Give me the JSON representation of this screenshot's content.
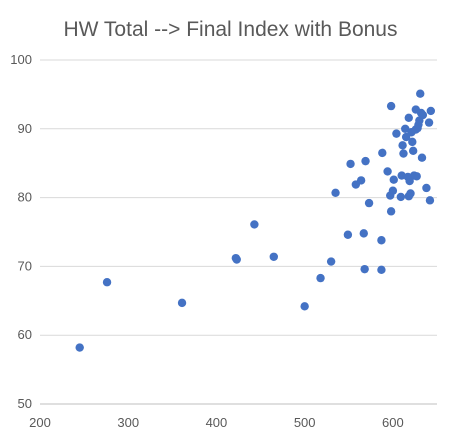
{
  "chart_data": {
    "type": "scatter",
    "title": "HW Total --> Final Index with Bonus",
    "xlabel": "",
    "ylabel": "",
    "xlim": [
      200,
      650
    ],
    "ylim": [
      50,
      100
    ],
    "x_ticks": [
      200,
      300,
      400,
      500,
      600
    ],
    "y_ticks": [
      50,
      60,
      70,
      80,
      90,
      100
    ],
    "grid": {
      "horizontal": true,
      "vertical": false
    },
    "marker_color": "#4472c4",
    "series": [
      {
        "points": [
          [
            245,
            58.2
          ],
          [
            276,
            67.7
          ],
          [
            361,
            64.7
          ],
          [
            422,
            71.2
          ],
          [
            423,
            71.0
          ],
          [
            443,
            76.1
          ],
          [
            465,
            71.4
          ],
          [
            500,
            64.2
          ],
          [
            518,
            68.3
          ],
          [
            530,
            70.7
          ],
          [
            535,
            80.7
          ],
          [
            549,
            74.6
          ],
          [
            552,
            84.9
          ],
          [
            558,
            81.9
          ],
          [
            564,
            82.5
          ],
          [
            567,
            74.8
          ],
          [
            568,
            69.6
          ],
          [
            569,
            85.3
          ],
          [
            573,
            79.2
          ],
          [
            587,
            73.8
          ],
          [
            587,
            69.5
          ],
          [
            588,
            86.5
          ],
          [
            594,
            83.8
          ],
          [
            597,
            80.3
          ],
          [
            598,
            78.0
          ],
          [
            598,
            93.3
          ],
          [
            600,
            81.0
          ],
          [
            601,
            82.6
          ],
          [
            604,
            89.3
          ],
          [
            609,
            80.1
          ],
          [
            610,
            83.2
          ],
          [
            611,
            87.6
          ],
          [
            612,
            86.4
          ],
          [
            614,
            90.0
          ],
          [
            615,
            88.8
          ],
          [
            617,
            83.0
          ],
          [
            618,
            91.6
          ],
          [
            618,
            80.2
          ],
          [
            619,
            82.4
          ],
          [
            620,
            80.6
          ],
          [
            621,
            89.5
          ],
          [
            622,
            88.1
          ],
          [
            623,
            86.8
          ],
          [
            624,
            83.2
          ],
          [
            626,
            89.9
          ],
          [
            626,
            92.8
          ],
          [
            627,
            83.1
          ],
          [
            628,
            90.1
          ],
          [
            629,
            90.6
          ],
          [
            630,
            91.2
          ],
          [
            631,
            95.1
          ],
          [
            632,
            92.3
          ],
          [
            633,
            85.8
          ],
          [
            634,
            92.0
          ],
          [
            638,
            81.4
          ],
          [
            641,
            90.9
          ],
          [
            642,
            79.6
          ],
          [
            643,
            92.6
          ]
        ]
      }
    ]
  }
}
